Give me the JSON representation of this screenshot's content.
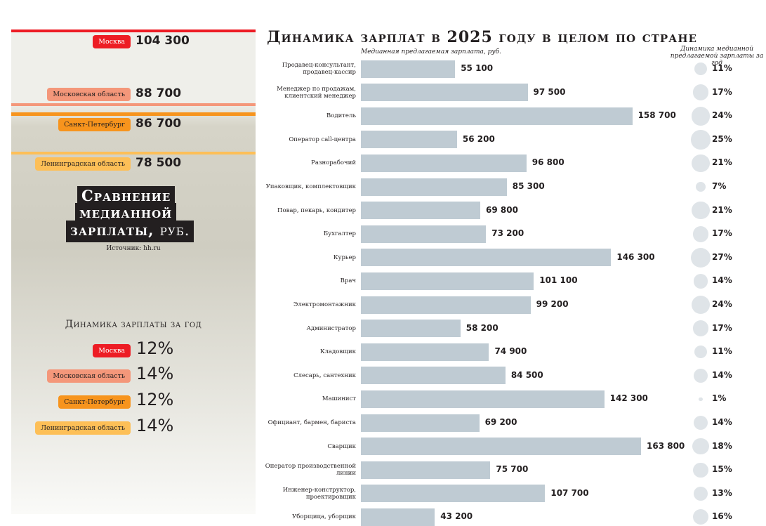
{
  "left": {
    "regions": [
      {
        "name": "Москва",
        "salary": "104 300",
        "growth": "12%",
        "color": "#ed1c24",
        "text": "#fff"
      },
      {
        "name": "Московская область",
        "salary": "88 700",
        "growth": "14%",
        "color": "#f4977a",
        "text": "#231f20"
      },
      {
        "name": "Санкт-Петербург",
        "salary": "86 700",
        "growth": "12%",
        "color": "#f7941d",
        "text": "#231f20"
      },
      {
        "name": "Ленинградская область",
        "salary": "78 500",
        "growth": "14%",
        "color": "#fdbf57",
        "text": "#231f20"
      }
    ],
    "title_lines": [
      "Сравнение",
      "медианной",
      "зарплаты,"
    ],
    "title_unit": "руб.",
    "source": "Источник: hh.ru",
    "growth_heading": "Динамика зарплаты за год"
  },
  "chart_data": {
    "type": "bar",
    "title": "Динамика зарплат в 2025 году в целом по стране",
    "xlabel": "Медианная предлагаемая зарплата, руб.",
    "growth_label": "Динамика медианной предлагаемой зарплаты за год",
    "categories": [
      "Продавец-консультант, продавец-кассир",
      "Менеджер по продажам, клиентский менеджер",
      "Водитель",
      "Оператор call-центра",
      "Разнорабочий",
      "Упаковщик, комплектовщик",
      "Повар, пекарь, кондитер",
      "Бухгалтер",
      "Курьер",
      "Врач",
      "Электромонтажник",
      "Администратор",
      "Кладовщик",
      "Слесарь, сантехник",
      "Машинист",
      "Официант, бармен, бариста",
      "Сварщик",
      "Оператор производственной линии",
      "Инженер-конструктор, проектировщик",
      "Уборщица, уборщик"
    ],
    "values": [
      55100,
      97500,
      158700,
      56200,
      96800,
      85300,
      69800,
      73200,
      146300,
      101100,
      99200,
      58200,
      74900,
      84500,
      142300,
      69200,
      163800,
      75700,
      107700,
      43200
    ],
    "value_labels": [
      "55 100",
      "97 500",
      "158 700",
      "56 200",
      "96 800",
      "85 300",
      "69 800",
      "73 200",
      "146 300",
      "101 100",
      "99 200",
      "58 200",
      "74 900",
      "84 500",
      "142 300",
      "69 200",
      "163 800",
      "75 700",
      "107 700",
      "43 200"
    ],
    "growth": [
      11,
      17,
      24,
      25,
      21,
      7,
      21,
      17,
      27,
      14,
      24,
      17,
      11,
      14,
      1,
      14,
      18,
      15,
      13,
      16
    ],
    "bar_color": "#bfcbd3"
  }
}
